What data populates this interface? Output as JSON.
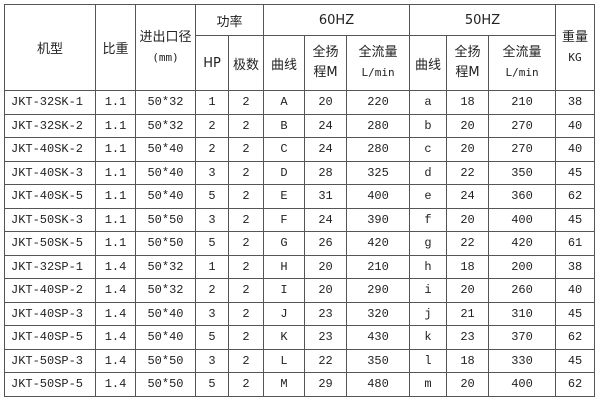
{
  "headers": {
    "model": "机型",
    "sg": "比重",
    "port": "进出口径",
    "port_unit": "(mm)",
    "power": "功率",
    "hz60": "60HZ",
    "hz50": "50HZ",
    "weight": "重量",
    "weight_unit": "KG",
    "hp": "HP",
    "poles": "极数",
    "curve": "曲线",
    "head": "全扬",
    "head_unit": "程M",
    "flow": "全流量",
    "flow_unit": "L/min"
  },
  "rows": [
    [
      "JKT-32SK-1",
      "1.1",
      "50*32",
      "1",
      "2",
      "A",
      "20",
      "220",
      "a",
      "18",
      "210",
      "38"
    ],
    [
      "JKT-32SK-2",
      "1.1",
      "50*32",
      "2",
      "2",
      "B",
      "24",
      "280",
      "b",
      "20",
      "270",
      "40"
    ],
    [
      "JKT-40SK-2",
      "1.1",
      "50*40",
      "2",
      "2",
      "C",
      "24",
      "280",
      "c",
      "20",
      "270",
      "40"
    ],
    [
      "JKT-40SK-3",
      "1.1",
      "50*40",
      "3",
      "2",
      "D",
      "28",
      "325",
      "d",
      "22",
      "350",
      "45"
    ],
    [
      "JKT-40SK-5",
      "1.1",
      "50*40",
      "5",
      "2",
      "E",
      "31",
      "400",
      "e",
      "24",
      "360",
      "62"
    ],
    [
      "JKT-50SK-3",
      "1.1",
      "50*50",
      "3",
      "2",
      "F",
      "24",
      "390",
      "f",
      "20",
      "400",
      "45"
    ],
    [
      "JKT-50SK-5",
      "1.1",
      "50*50",
      "5",
      "2",
      "G",
      "26",
      "420",
      "g",
      "22",
      "420",
      "61"
    ],
    [
      "JKT-32SP-1",
      "1.4",
      "50*32",
      "1",
      "2",
      "H",
      "20",
      "210",
      "h",
      "18",
      "200",
      "38"
    ],
    [
      "JKT-40SP-2",
      "1.4",
      "50*32",
      "2",
      "2",
      "I",
      "20",
      "290",
      "i",
      "20",
      "260",
      "40"
    ],
    [
      "JKT-40SP-3",
      "1.4",
      "50*40",
      "3",
      "2",
      "J",
      "23",
      "320",
      "j",
      "21",
      "310",
      "45"
    ],
    [
      "JKT-40SP-5",
      "1.4",
      "50*40",
      "5",
      "2",
      "K",
      "23",
      "430",
      "k",
      "23",
      "370",
      "62"
    ],
    [
      "JKT-50SP-3",
      "1.4",
      "50*50",
      "3",
      "2",
      "L",
      "22",
      "350",
      "l",
      "18",
      "330",
      "45"
    ],
    [
      "JKT-50SP-5",
      "1.4",
      "50*50",
      "5",
      "2",
      "M",
      "29",
      "480",
      "m",
      "20",
      "400",
      "62"
    ]
  ]
}
